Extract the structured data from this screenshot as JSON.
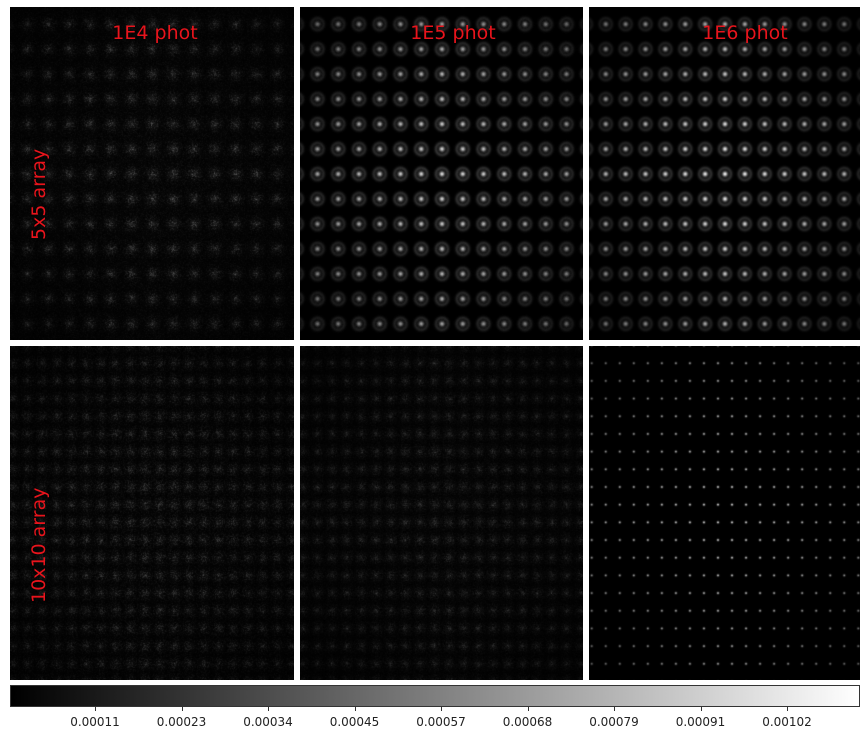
{
  "columns": [
    {
      "label": "1E4 phot"
    },
    {
      "label": "1E5 phot"
    },
    {
      "label": "1E6 phot"
    }
  ],
  "rows": [
    {
      "label": "5x5 array"
    },
    {
      "label": "10x10 array"
    }
  ],
  "colorbar": {
    "colormap": "gray",
    "tick_labels": [
      "0.00011",
      "0.00023",
      "0.00034",
      "0.00045",
      "0.00057",
      "0.00068",
      "0.00079",
      "0.00091",
      "0.00102"
    ]
  },
  "colors": {
    "label_color": "#e8141c",
    "background": "#ffffff"
  }
}
